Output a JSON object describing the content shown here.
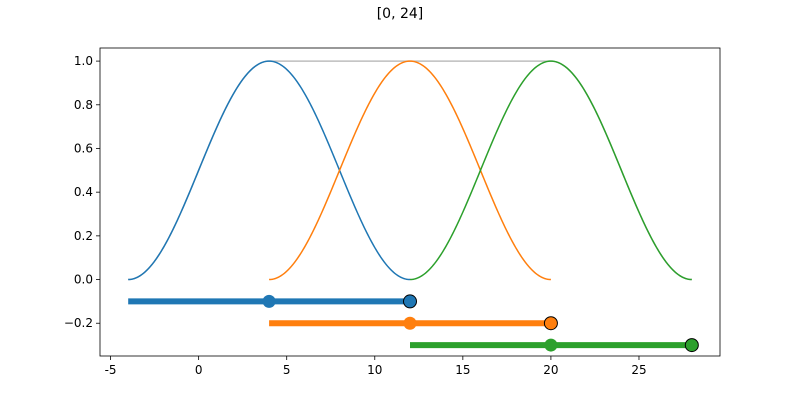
{
  "chart_data": {
    "type": "line",
    "title": "[0, 24]",
    "xlabel": "",
    "ylabel": "",
    "xlim": [
      -5.6,
      29.6
    ],
    "ylim": [
      -0.35,
      1.06
    ],
    "xticks": [
      -5,
      0,
      5,
      10,
      15,
      20,
      25
    ],
    "yticks": [
      -0.2,
      0.0,
      0.2,
      0.4,
      0.6,
      0.8,
      1.0
    ],
    "ytick_labels": [
      "−0.2",
      "0.0",
      "0.2",
      "0.4",
      "0.6",
      "0.8",
      "1.0"
    ],
    "grid": false,
    "sum_curve": {
      "color": "#bdbdbd",
      "x_range": [
        -4,
        28
      ]
    },
    "series": [
      {
        "center": 4,
        "x_range": [
          -4,
          12
        ],
        "color": "#1f77b4",
        "bar": {
          "y": -0.1,
          "from": -4,
          "to": 12,
          "mid": 4,
          "end": 12
        }
      },
      {
        "center": 12,
        "x_range": [
          4,
          20
        ],
        "color": "#ff7f0e",
        "bar": {
          "y": -0.2,
          "from": 4,
          "to": 20,
          "mid": 12,
          "end": 20
        }
      },
      {
        "center": 20,
        "x_range": [
          12,
          28
        ],
        "color": "#2ca02c",
        "bar": {
          "y": -0.3,
          "from": 12,
          "to": 28,
          "mid": 20,
          "end": 28
        }
      }
    ]
  }
}
